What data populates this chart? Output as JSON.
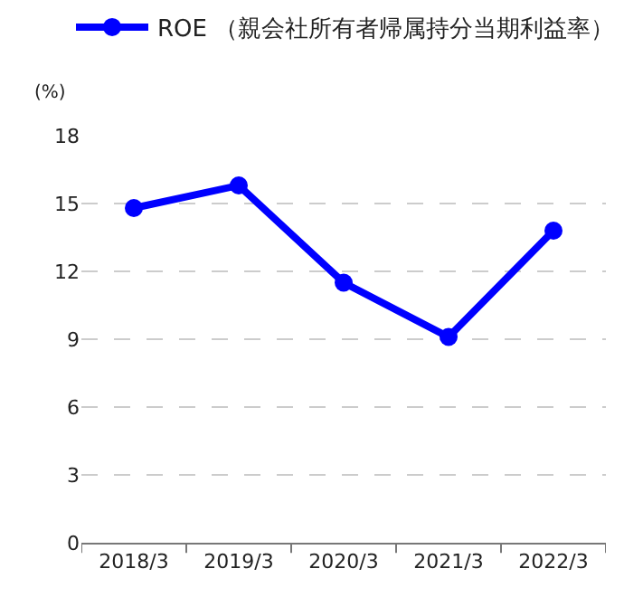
{
  "chart_data": {
    "type": "line",
    "ylabel": "(%)",
    "categories": [
      "2018/3",
      "2019/3",
      "2020/3",
      "2021/3",
      "2022/3"
    ],
    "series": [
      {
        "name": "ROE （親会社所有者帰属持分当期利益率）",
        "color": "#0000ff",
        "values": [
          14.8,
          15.8,
          11.5,
          9.1,
          13.8
        ]
      }
    ],
    "ylim": [
      0,
      18
    ],
    "yticks": [
      0,
      3,
      6,
      9,
      12,
      15,
      18
    ],
    "grid": "y",
    "legend": "top",
    "marker": "circle",
    "line_style": "solid"
  }
}
